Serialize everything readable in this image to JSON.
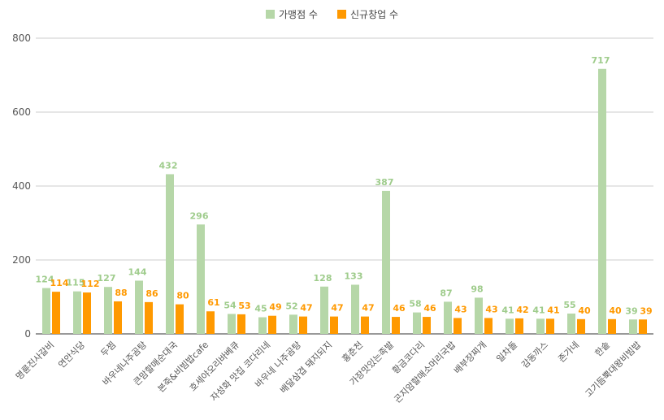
{
  "chart_data": {
    "type": "bar",
    "categories": [
      "명륜진사갈비",
      "연안식당",
      "두찜",
      "바우네나주곰탕",
      "큰맘할매순대국",
      "본죽&비빔밥cafe",
      "호세야오리바베큐",
      "자성화 맛집 코다리네",
      "바우네 나주곰탕",
      "배달삼겹 돼지되지",
      "홍춘천",
      "가장맛있는족발",
      "황금코다리",
      "곤지암할매소머리국밥",
      "배부장찌개",
      "일차돌",
      "감동까스",
      "존가네",
      "한솥",
      "고기듬뿍대왕비빔밥"
    ],
    "series": [
      {
        "name": "가맹점 수",
        "color": "#b6d7a8",
        "values": [
          124,
          115,
          127,
          144,
          432,
          296,
          54,
          45,
          52,
          128,
          133,
          387,
          58,
          87,
          98,
          41,
          41,
          55,
          717,
          39
        ]
      },
      {
        "name": "신규창업 수",
        "color": "#ff9900",
        "values": [
          114,
          112,
          88,
          86,
          80,
          61,
          53,
          49,
          47,
          47,
          47,
          46,
          46,
          43,
          43,
          42,
          41,
          40,
          40,
          39
        ]
      }
    ],
    "ylim": [
      0,
      800
    ],
    "yticks": [
      0,
      200,
      400,
      600,
      800
    ],
    "legend_position": "top",
    "grid": true
  }
}
